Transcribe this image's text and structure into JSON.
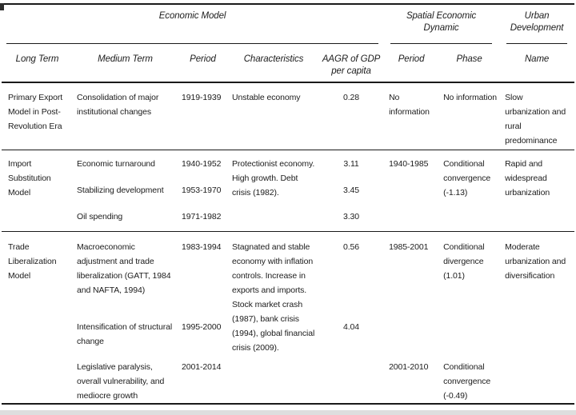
{
  "colors": {
    "text": "#1c1c1c",
    "rule_line": "#1a1a1a",
    "background": "#ffffff",
    "bottom_strip": "#dedede"
  },
  "table": {
    "groups": [
      {
        "label": "Economic Model"
      },
      {
        "label": "Spatial Economic Dynamic"
      },
      {
        "label": "Urban Development"
      }
    ],
    "columns": {
      "long_term": "Long Term",
      "medium_term": "Medium Term",
      "period": "Period",
      "characteristics": "Characteristics",
      "aagr": "AAGR of GDP per capita",
      "spatial_period": "Period",
      "spatial_phase": "Phase",
      "urban_name": "Name"
    },
    "rows": [
      {
        "long_term": "Primary Export Model in Post-Revolution Era",
        "entries": [
          {
            "medium_term": "Consolidation of major institutional changes",
            "period": "1919-1939",
            "aagr": "0.28"
          }
        ],
        "characteristics": "Unstable economy",
        "spatial": [
          {
            "period": "No information",
            "phase": "No information"
          }
        ],
        "urban": "Slow urbanization and rural predominance"
      },
      {
        "long_term": "Import Substitution Model",
        "entries": [
          {
            "medium_term": "Economic turnaround",
            "period": "1940-1952",
            "aagr": "3.11"
          },
          {
            "medium_term": "Stabilizing development",
            "period": "1953-1970",
            "aagr": "3.45"
          },
          {
            "medium_term": "Oil spending",
            "period": "1971-1982",
            "aagr": "3.30"
          }
        ],
        "characteristics": "Protectionist economy. High growth. Debt crisis (1982).",
        "spatial": [
          {
            "period": "1940-1985",
            "phase": "Conditional convergence (-1.13)"
          }
        ],
        "urban": "Rapid and widespread urbanization"
      },
      {
        "long_term": "Trade Liberalization Model",
        "entries": [
          {
            "medium_term": "Macroeconomic adjustment and trade liberalization (GATT, 1984 and NAFTA, 1994)",
            "period": "1983-1994",
            "aagr": "0.56"
          },
          {
            "medium_term": "Intensification of structural change",
            "period": "1995-2000",
            "aagr": "4.04"
          },
          {
            "medium_term": "Legislative paralysis, overall vulnerability, and mediocre growth",
            "period": "2001-2014",
            "aagr": ""
          }
        ],
        "characteristics": "Stagnated and stable economy with inflation controls. Increase in exports and imports. Stock market crash (1987), bank crisis (1994), global financial crisis (2009).",
        "spatial": [
          {
            "period": "1985-2001",
            "phase": "Conditional divergence (1.01)"
          },
          {
            "period": "2001-2010",
            "phase": "Conditional convergence (-0.49)"
          }
        ],
        "urban": "Moderate urbanization and diversification"
      }
    ]
  }
}
